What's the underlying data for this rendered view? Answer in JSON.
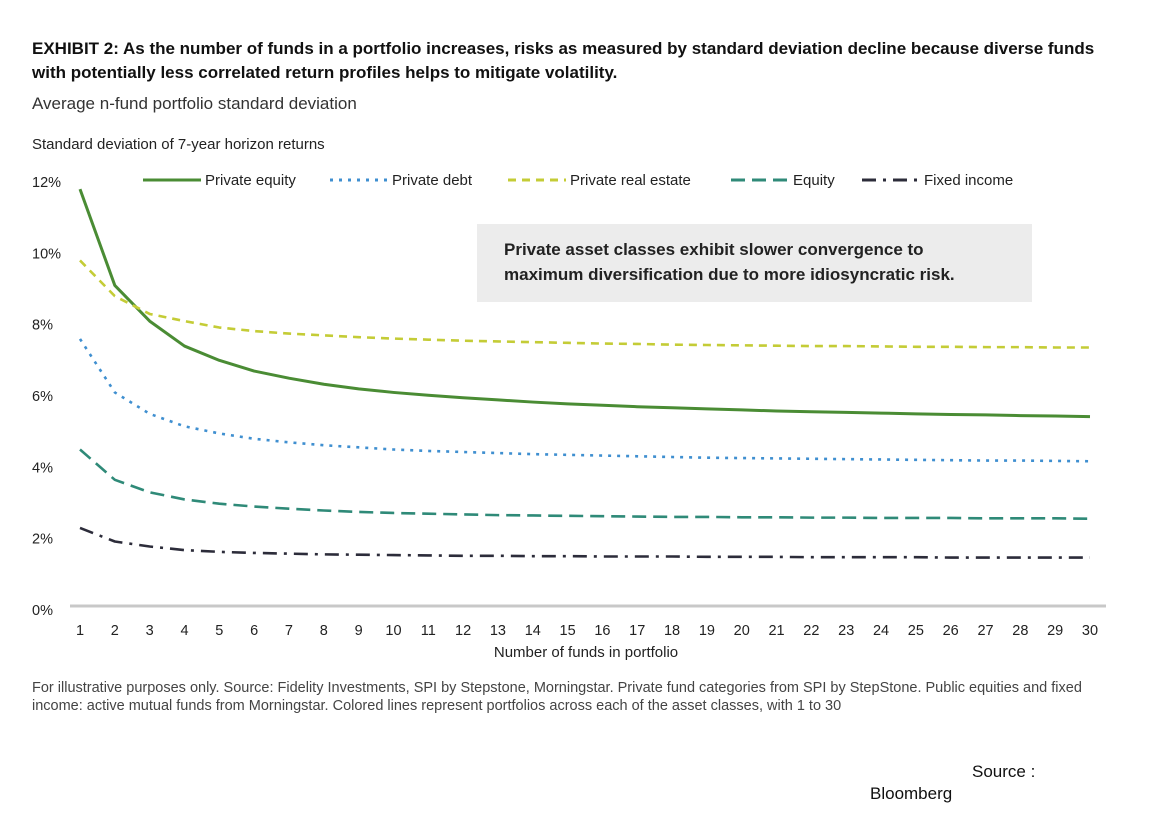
{
  "title": "EXHIBIT 2: As the number of funds in a portfolio increases, risks as measured by standard deviation decline because diverse funds with potentially less correlated return profiles helps to mitigate volatility.",
  "subtitle": "Average n-fund portfolio standard deviation",
  "footnote": "For illustrative purposes only. Source: Fidelity Investments, SPI by Stepstone, Morningstar. Private fund categories from SPI by StepStone. Public equities and fixed income: active mutual funds from Morningstar. Colored lines represent portfolios across each of the asset classes, with 1 to 30",
  "source_line1": "Source :",
  "source_line2": "Bloomberg",
  "chart_data": {
    "type": "line",
    "ylabel": "Standard deviation of 7-year horizon returns",
    "xlabel": "Number of funds in portfolio",
    "x": [
      1,
      2,
      3,
      4,
      5,
      6,
      7,
      8,
      9,
      10,
      11,
      12,
      13,
      14,
      15,
      16,
      17,
      18,
      19,
      20,
      21,
      22,
      23,
      24,
      25,
      26,
      27,
      28,
      29,
      30
    ],
    "ylim": [
      0,
      12
    ],
    "yticks": [
      "0%",
      "2%",
      "4%",
      "6%",
      "8%",
      "10%",
      "12%"
    ],
    "xticks": [
      "1",
      "2",
      "3",
      "4",
      "5",
      "6",
      "7",
      "8",
      "9",
      "10",
      "11",
      "12",
      "13",
      "14",
      "15",
      "16",
      "17",
      "18",
      "19",
      "20",
      "21",
      "22",
      "23",
      "24",
      "25",
      "26",
      "27",
      "28",
      "29",
      "30"
    ],
    "annotation": "Private asset classes exhibit slower convergence to maximum diversification due to more idiosyncratic risk.",
    "legend_position": "top",
    "series": [
      {
        "name": "Private equity",
        "color": "#4a8c34",
        "style": "solid",
        "values": [
          11.8,
          9.1,
          8.1,
          7.4,
          7.0,
          6.7,
          6.5,
          6.33,
          6.2,
          6.1,
          6.02,
          5.95,
          5.89,
          5.83,
          5.78,
          5.74,
          5.7,
          5.67,
          5.64,
          5.61,
          5.58,
          5.56,
          5.54,
          5.52,
          5.5,
          5.48,
          5.47,
          5.45,
          5.44,
          5.42
        ]
      },
      {
        "name": "Private debt",
        "color": "#3f8fd0",
        "style": "dotted",
        "values": [
          7.6,
          6.1,
          5.5,
          5.15,
          4.95,
          4.8,
          4.7,
          4.62,
          4.56,
          4.5,
          4.46,
          4.43,
          4.4,
          4.37,
          4.35,
          4.33,
          4.31,
          4.29,
          4.27,
          4.26,
          4.25,
          4.24,
          4.23,
          4.22,
          4.21,
          4.2,
          4.19,
          4.19,
          4.18,
          4.17
        ]
      },
      {
        "name": "Private real estate",
        "color": "#c4cc36",
        "style": "dashed",
        "values": [
          9.8,
          8.8,
          8.3,
          8.1,
          7.92,
          7.82,
          7.75,
          7.7,
          7.65,
          7.61,
          7.58,
          7.55,
          7.53,
          7.51,
          7.49,
          7.47,
          7.46,
          7.44,
          7.43,
          7.42,
          7.41,
          7.4,
          7.4,
          7.39,
          7.38,
          7.38,
          7.37,
          7.37,
          7.36,
          7.36
        ]
      },
      {
        "name": "Equity",
        "color": "#2f8a78",
        "style": "longdash",
        "values": [
          4.5,
          3.65,
          3.3,
          3.1,
          2.98,
          2.9,
          2.84,
          2.79,
          2.75,
          2.72,
          2.7,
          2.68,
          2.66,
          2.65,
          2.64,
          2.63,
          2.62,
          2.61,
          2.61,
          2.6,
          2.6,
          2.59,
          2.59,
          2.58,
          2.58,
          2.58,
          2.57,
          2.57,
          2.57,
          2.56
        ]
      },
      {
        "name": "Fixed income",
        "color": "#2c2c3a",
        "style": "dashdot",
        "values": [
          2.3,
          1.92,
          1.78,
          1.68,
          1.63,
          1.6,
          1.58,
          1.56,
          1.55,
          1.54,
          1.53,
          1.52,
          1.52,
          1.51,
          1.51,
          1.5,
          1.5,
          1.5,
          1.49,
          1.49,
          1.49,
          1.48,
          1.48,
          1.48,
          1.48,
          1.47,
          1.47,
          1.47,
          1.47,
          1.47
        ]
      }
    ]
  }
}
